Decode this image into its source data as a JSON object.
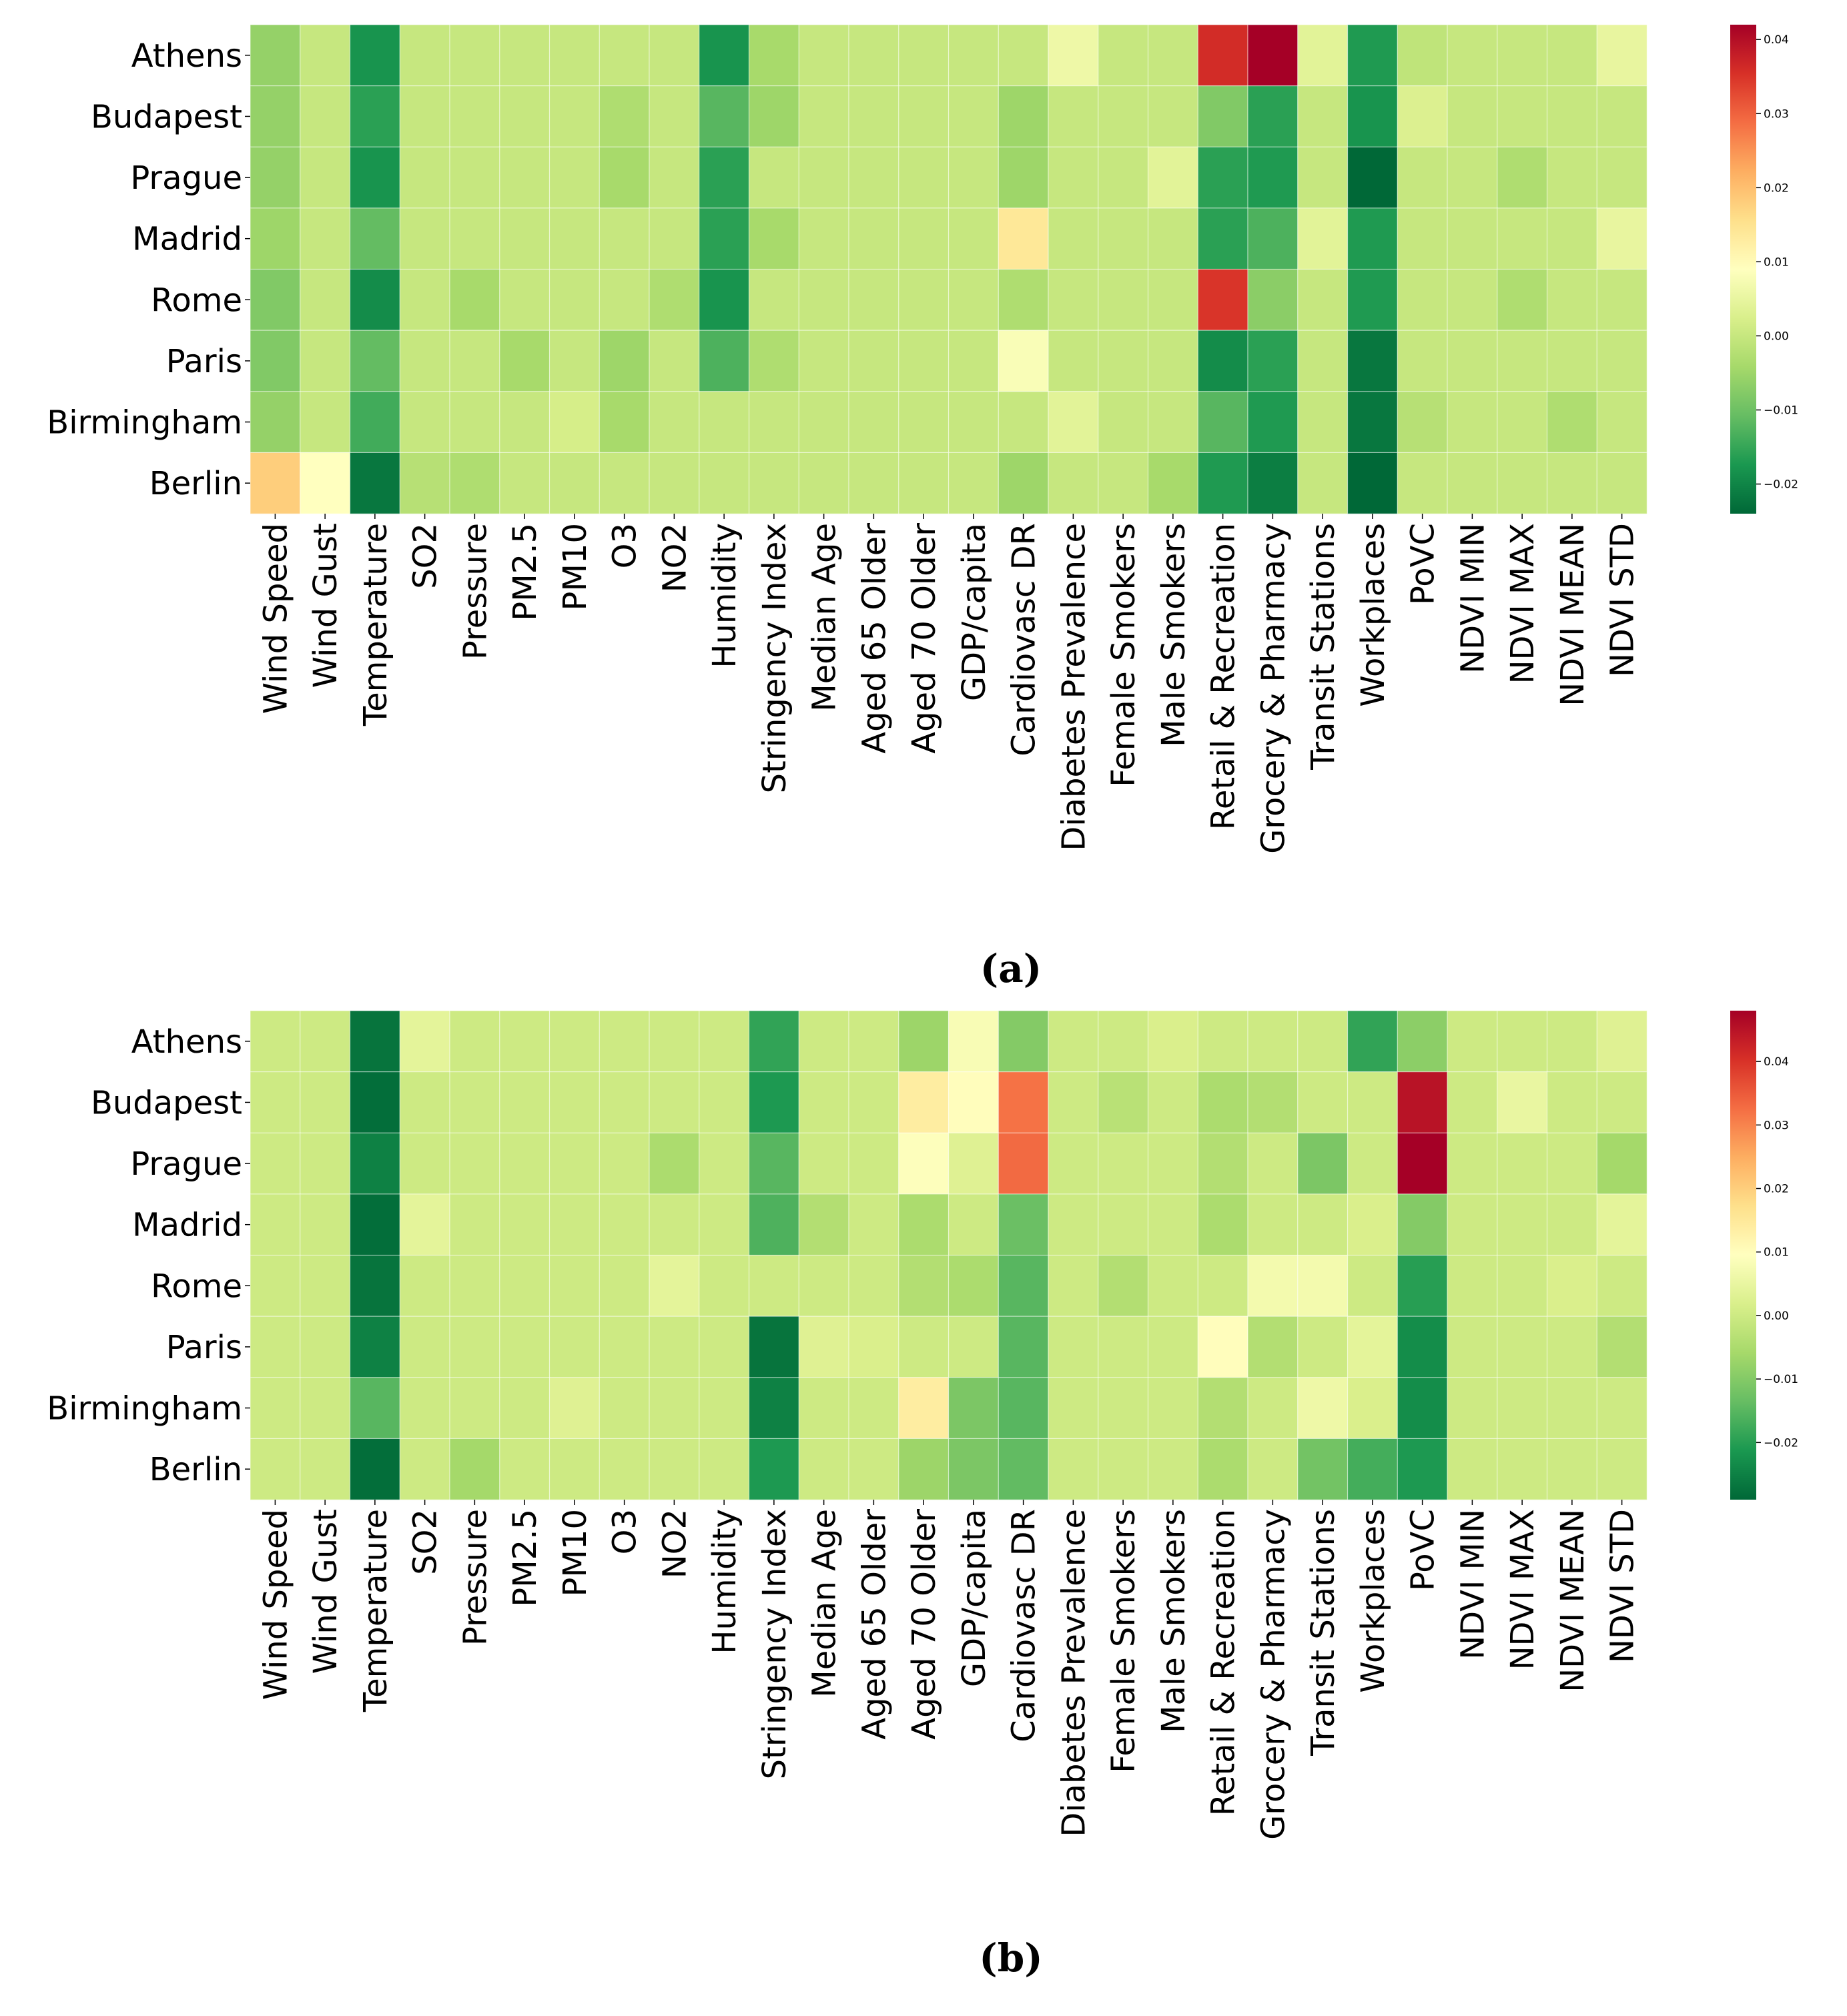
{
  "figure": {
    "panels": [
      "(a)",
      "(b)"
    ]
  },
  "chart_data": [
    {
      "type": "heatmap",
      "panel_label": "(a)",
      "rows": [
        "Athens",
        "Budapest",
        "Prague",
        "Madrid",
        "Rome",
        "Paris",
        "Birmingham",
        "Berlin"
      ],
      "columns": [
        "Wind Speed",
        "Wind Gust",
        "Temperature",
        "SO2",
        "Pressure",
        "PM2.5",
        "PM10",
        "O3",
        "NO2",
        "Humidity",
        "Stringency Index",
        "Median Age",
        "Aged 65 Older",
        "Aged 70 Older",
        "GDP/capita",
        "Cardiovasc DR",
        "Diabetes Prevalence",
        "Female Smokers",
        "Male Smokers",
        "Retail & Recreation",
        "Grocery & Pharmacy",
        "Transit Stations",
        "Workplaces",
        "PoVC",
        "NDVI MIN",
        "NDVI MAX",
        "NDVI MEAN",
        "NDVI STD"
      ],
      "values": [
        [
          -0.006,
          0,
          -0.018,
          0,
          0,
          0,
          0,
          0,
          0,
          -0.018,
          -0.004,
          0,
          0,
          0,
          0,
          0,
          0.006,
          0,
          0,
          0.036,
          0.042,
          0.004,
          -0.017,
          -0.001,
          0,
          0,
          0,
          0.005
        ],
        [
          -0.006,
          0,
          -0.016,
          0,
          0,
          0,
          0,
          -0.003,
          0,
          -0.012,
          -0.005,
          0,
          0,
          0,
          0,
          -0.005,
          0,
          0,
          0,
          -0.008,
          -0.016,
          0,
          -0.018,
          0.003,
          0,
          0,
          0,
          0
        ],
        [
          -0.006,
          0,
          -0.018,
          0,
          0,
          0,
          0,
          -0.004,
          0,
          -0.016,
          0,
          0,
          0,
          0,
          0,
          -0.005,
          0,
          0,
          0.004,
          -0.016,
          -0.017,
          0,
          -0.024,
          0,
          0,
          -0.003,
          0,
          0
        ],
        [
          -0.005,
          0,
          -0.011,
          0,
          0,
          0,
          0,
          0,
          0,
          -0.016,
          -0.004,
          0,
          0,
          0,
          0,
          0.014,
          0,
          0,
          0,
          -0.016,
          -0.013,
          0.004,
          -0.017,
          0,
          0,
          0,
          0,
          0.005
        ],
        [
          -0.008,
          0,
          -0.019,
          0,
          -0.004,
          0,
          0,
          0,
          -0.003,
          -0.018,
          0,
          0,
          0,
          0,
          0,
          -0.003,
          0,
          0,
          0,
          0.035,
          -0.007,
          0,
          -0.017,
          0,
          0,
          -0.003,
          0,
          0
        ],
        [
          -0.008,
          0,
          -0.011,
          0,
          0,
          -0.004,
          0,
          -0.005,
          0,
          -0.013,
          -0.003,
          0,
          0,
          0,
          0,
          0.008,
          0,
          0,
          0,
          -0.019,
          -0.016,
          0,
          -0.022,
          0,
          0,
          0,
          0,
          0
        ],
        [
          -0.006,
          0,
          -0.014,
          0,
          0,
          0,
          0.002,
          -0.004,
          0,
          0,
          0,
          0,
          0,
          0,
          0,
          0,
          0.004,
          0,
          0,
          -0.012,
          -0.017,
          0,
          -0.022,
          -0.002,
          0,
          0,
          -0.003,
          0
        ],
        [
          0.018,
          0.009,
          -0.022,
          -0.002,
          -0.003,
          0,
          0,
          0,
          0,
          0,
          0,
          0,
          0,
          0,
          0,
          -0.005,
          0,
          0,
          -0.004,
          -0.017,
          -0.021,
          0,
          -0.024,
          0,
          0,
          0,
          0,
          0
        ]
      ],
      "colorbar": {
        "vmin": -0.024,
        "vmax": 0.042,
        "ticks": [
          -0.02,
          -0.01,
          0.0,
          0.01,
          0.02,
          0.03,
          0.04
        ],
        "tick_labels": [
          "−0.02",
          "−0.01",
          "0.00",
          "0.01",
          "0.02",
          "0.03",
          "0.04"
        ],
        "colormap": "RdYlGn_r"
      }
    },
    {
      "type": "heatmap",
      "panel_label": "(b)",
      "rows": [
        "Athens",
        "Budapest",
        "Prague",
        "Madrid",
        "Rome",
        "Paris",
        "Birmingham",
        "Berlin"
      ],
      "columns": [
        "Wind Speed",
        "Wind Gust",
        "Temperature",
        "SO2",
        "Pressure",
        "PM2.5",
        "PM10",
        "O3",
        "NO2",
        "Humidity",
        "Stringency Index",
        "Median Age",
        "Aged 65 Older",
        "Aged 70 Older",
        "GDP/capita",
        "Cardiovasc DR",
        "Diabetes Prevalence",
        "Female Smokers",
        "Male Smokers",
        "Retail & Recreation",
        "Grocery & Pharmacy",
        "Transit Stations",
        "Workplaces",
        "PoVC",
        "NDVI MIN",
        "NDVI MAX",
        "NDVI MEAN",
        "NDVI STD"
      ],
      "values": [
        [
          0,
          0,
          -0.027,
          0.004,
          0,
          0,
          0,
          0,
          0,
          0,
          -0.019,
          0,
          0,
          -0.007,
          0.008,
          -0.01,
          0,
          0,
          0.002,
          0,
          0,
          0,
          -0.019,
          -0.009,
          0,
          0,
          0,
          0.003
        ],
        [
          0,
          0,
          -0.028,
          0,
          0,
          0,
          0,
          0,
          0,
          0,
          -0.021,
          0,
          0,
          0.014,
          0.01,
          0.032,
          0,
          -0.003,
          0,
          -0.005,
          -0.004,
          0,
          0,
          0.045,
          0,
          0.005,
          0,
          0
        ],
        [
          0,
          0,
          -0.025,
          0,
          0,
          0,
          0,
          0,
          -0.005,
          0,
          -0.015,
          0,
          0,
          0.009,
          0.003,
          0.033,
          0,
          0,
          0,
          -0.004,
          0,
          -0.011,
          0,
          0.048,
          0,
          0,
          0,
          -0.006
        ],
        [
          0,
          0,
          -0.028,
          0.004,
          0,
          0,
          0,
          0,
          0,
          0,
          -0.016,
          -0.004,
          0,
          -0.005,
          0,
          -0.013,
          0,
          0,
          0,
          -0.005,
          0,
          0,
          0.002,
          -0.01,
          0,
          0,
          0,
          0.004
        ],
        [
          0,
          0,
          -0.027,
          0,
          0,
          0,
          0,
          0,
          0.004,
          0,
          0,
          0,
          0,
          -0.004,
          -0.005,
          -0.015,
          0,
          -0.004,
          0,
          0,
          0.007,
          0.007,
          0,
          -0.02,
          0,
          0,
          0.002,
          0
        ],
        [
          0,
          0,
          -0.025,
          0,
          0,
          0,
          0,
          0,
          0,
          0,
          -0.027,
          0.003,
          0.002,
          0,
          0,
          -0.015,
          0,
          0,
          0,
          0.01,
          -0.004,
          0,
          0.004,
          -0.023,
          0,
          0,
          0,
          -0.004
        ],
        [
          0,
          0,
          -0.015,
          0,
          0,
          0,
          0.003,
          0,
          0,
          0,
          -0.025,
          0,
          0,
          0.014,
          -0.011,
          -0.015,
          0,
          0,
          0,
          -0.004,
          0,
          0.006,
          0.002,
          -0.023,
          0,
          0,
          0,
          0
        ],
        [
          0,
          0,
          -0.028,
          0,
          -0.006,
          0,
          0,
          0,
          0,
          0,
          -0.021,
          0,
          0,
          -0.007,
          -0.011,
          -0.014,
          0,
          0,
          0,
          -0.005,
          0,
          -0.012,
          -0.017,
          -0.021,
          0,
          0,
          0,
          0
        ]
      ],
      "colorbar": {
        "vmin": -0.029,
        "vmax": 0.048,
        "ticks": [
          -0.02,
          -0.01,
          0.0,
          0.01,
          0.02,
          0.03,
          0.04
        ],
        "tick_labels": [
          "−0.02",
          "−0.01",
          "0.00",
          "0.01",
          "0.02",
          "0.03",
          "0.04"
        ],
        "colormap": "RdYlGn_r"
      }
    }
  ]
}
